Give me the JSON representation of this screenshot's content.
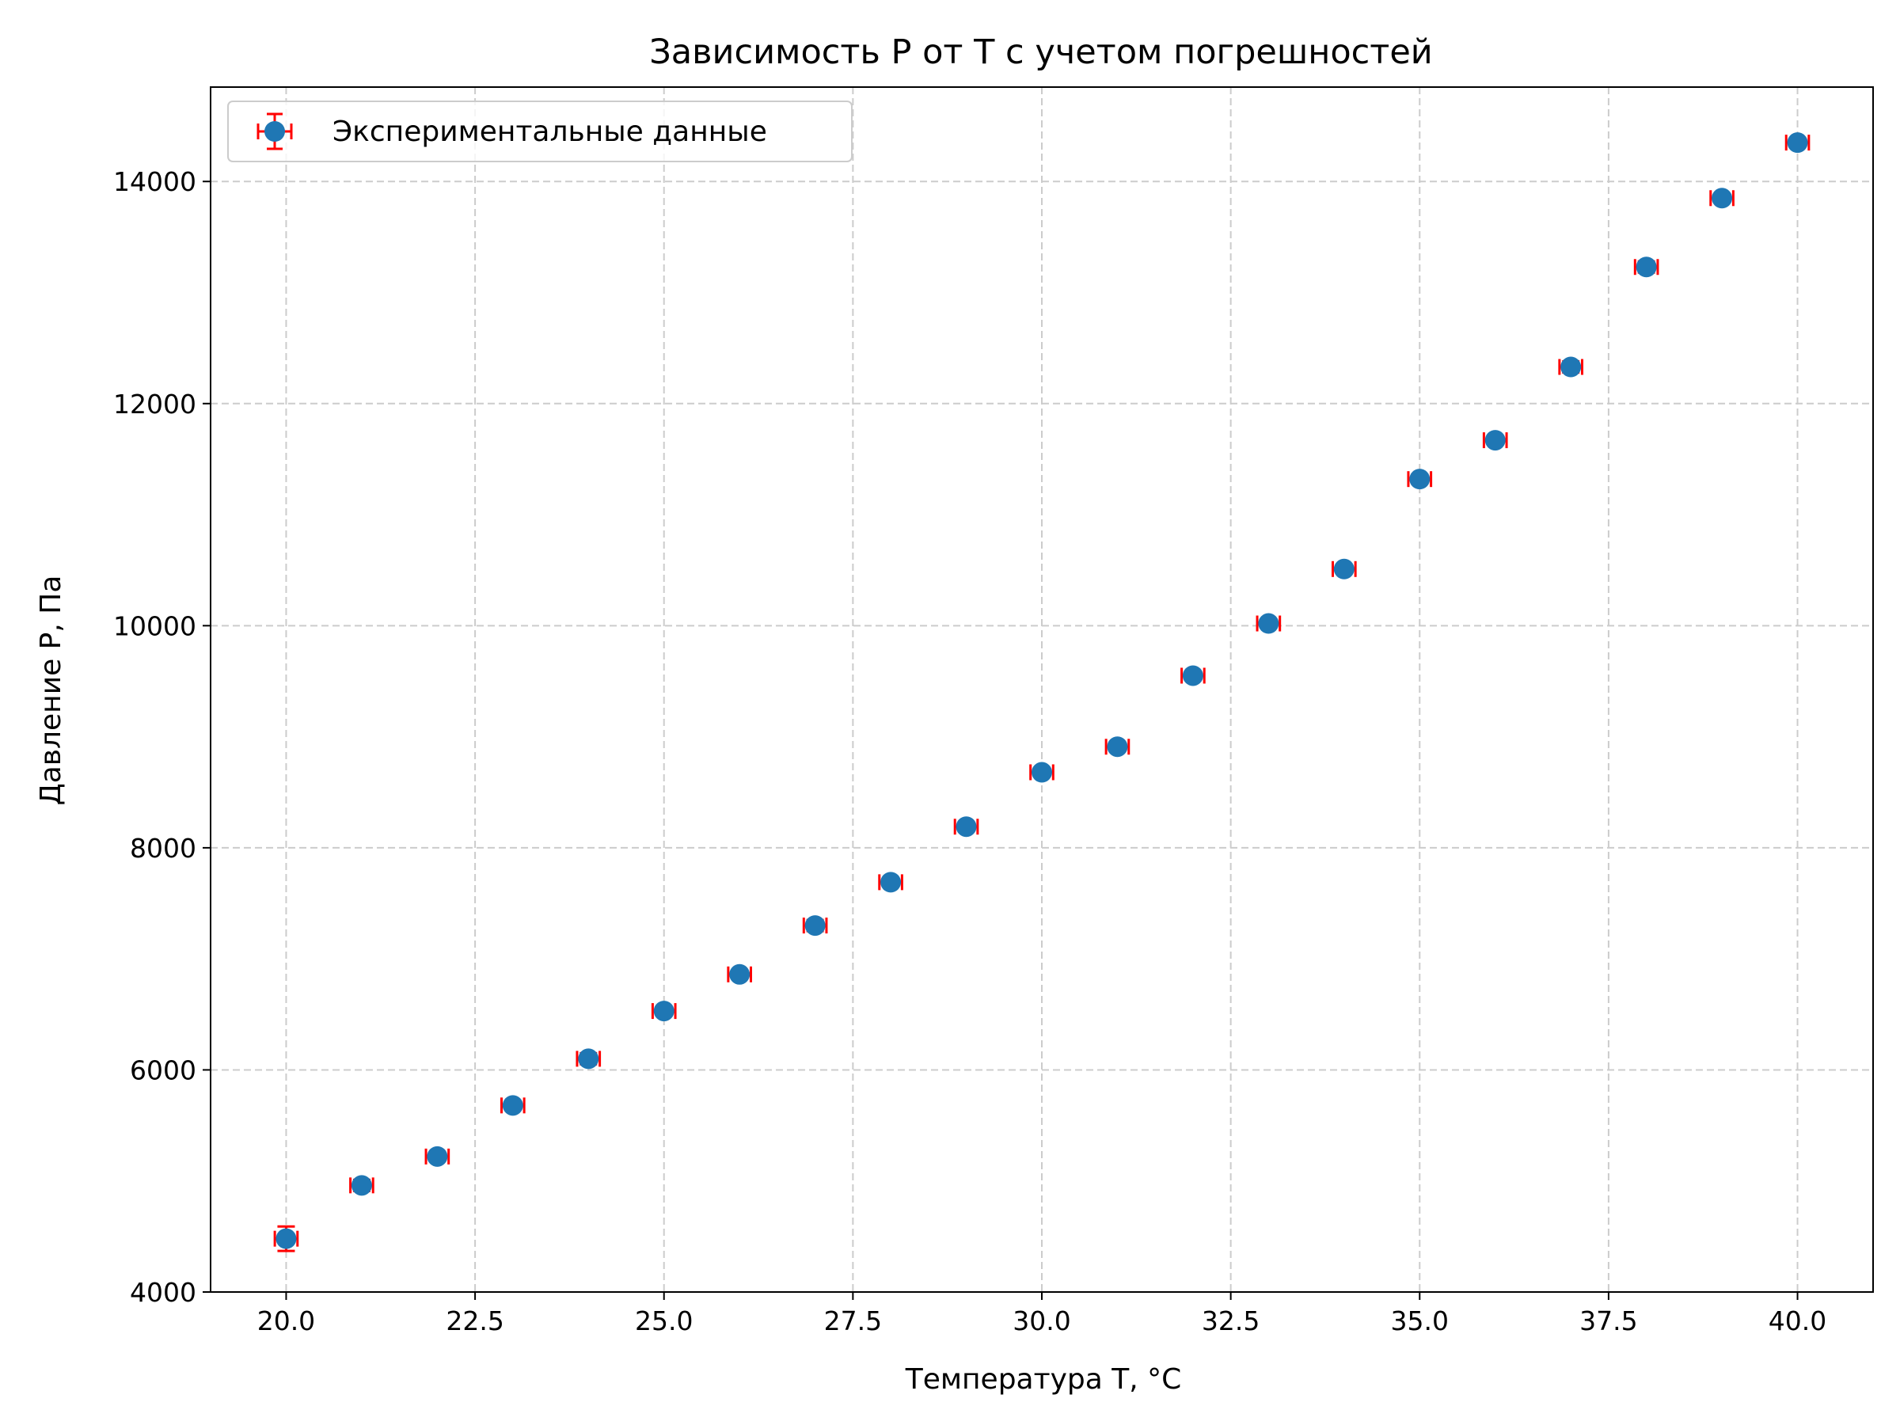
{
  "chart_data": {
    "type": "scatter",
    "title": "Зависимость P от T с учетом погрешностей",
    "xlabel": "Температура T, °C",
    "ylabel": "Давление P, Па",
    "xlim": [
      19.0,
      41.0
    ],
    "ylim": [
      4000,
      14850
    ],
    "x_ticks": [
      20.0,
      22.5,
      25.0,
      27.5,
      30.0,
      32.5,
      35.0,
      37.5,
      40.0
    ],
    "x_tick_labels": [
      "20.0",
      "22.5",
      "25.0",
      "27.5",
      "30.0",
      "32.5",
      "35.0",
      "37.5",
      "40.0"
    ],
    "y_ticks": [
      4000,
      6000,
      8000,
      10000,
      12000,
      14000
    ],
    "y_tick_labels": [
      "4000",
      "6000",
      "8000",
      "10000",
      "12000",
      "14000"
    ],
    "grid": true,
    "legend_position": "top-left",
    "colors": {
      "marker": "#1f77b4",
      "errorbar": "#ff0000",
      "grid": "#cccccc"
    },
    "series": [
      {
        "name": "Экспериментальные данные",
        "x": [
          20,
          21,
          22,
          23,
          24,
          25,
          26,
          27,
          28,
          29,
          30,
          31,
          32,
          33,
          34,
          35,
          36,
          37,
          38,
          39,
          40
        ],
        "y": [
          4480,
          4960,
          5220,
          5680,
          6100,
          6530,
          6860,
          7300,
          7690,
          8190,
          8680,
          8910,
          9550,
          10020,
          10510,
          11320,
          11670,
          12330,
          13230,
          13850,
          14350
        ],
        "y_err": [
          110,
          50,
          30,
          30,
          50,
          30,
          30,
          50,
          30,
          30,
          30,
          30,
          30,
          30,
          30,
          40,
          30,
          50,
          50,
          30,
          30
        ],
        "x_err": [
          0.15,
          0.15,
          0.15,
          0.15,
          0.15,
          0.15,
          0.15,
          0.15,
          0.15,
          0.15,
          0.15,
          0.15,
          0.15,
          0.15,
          0.15,
          0.15,
          0.15,
          0.15,
          0.15,
          0.15,
          0.15
        ]
      }
    ]
  }
}
